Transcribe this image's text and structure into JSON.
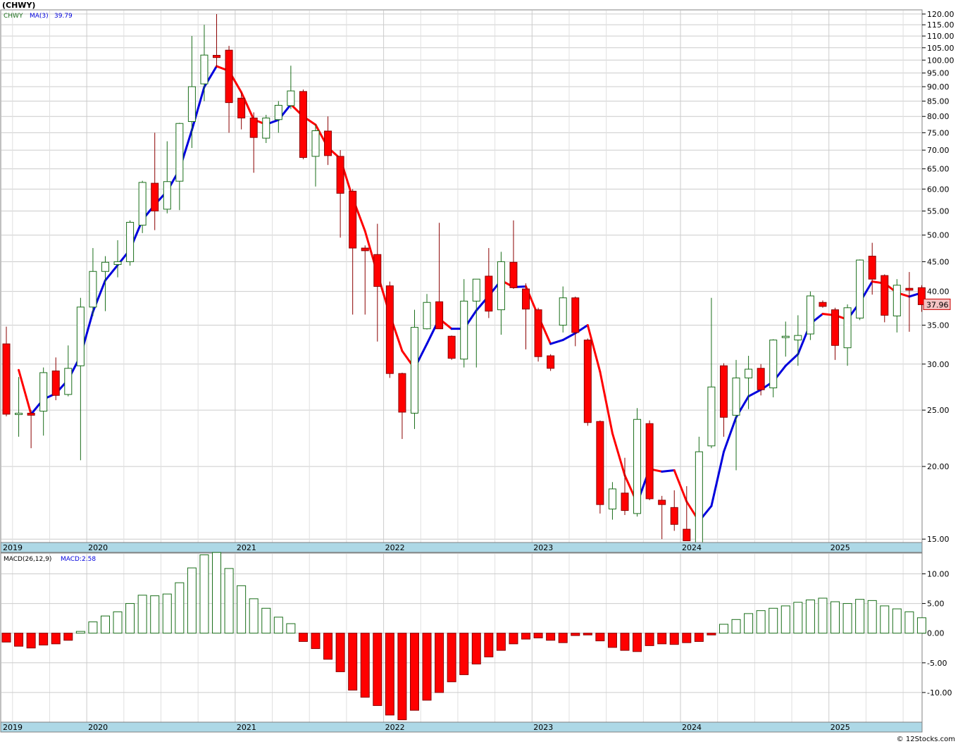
{
  "header": {
    "symbol_title": "(CHWY)",
    "legend_symbol": "CHWY",
    "legend_ma": "MA(3)",
    "legend_ma_value": "39.79",
    "last_price": "37.96",
    "macd_label": "MACD(26,12,9)",
    "macd_value": "MACD:2.58",
    "copyright": "© 12Stocks.com"
  },
  "colors": {
    "up": "#1a6e1a",
    "down": "#ff0000",
    "ma_up": "#0000dd",
    "ma_down": "#ff0000",
    "axis_band": "#add8e6",
    "grid": "#cccccc",
    "frame": "#808080",
    "last_price_box": "#f4c2c2"
  },
  "chart_data": [
    {
      "type": "candlestick",
      "title": "(CHWY)",
      "scale": "log",
      "ylim": [
        14.8,
        122
      ],
      "grid": true,
      "interval": "monthly",
      "ticks": [
        "120.00",
        "115.00",
        "110.00",
        "105.00",
        "100.00",
        "95.00",
        "90.00",
        "85.00",
        "80.00",
        "75.00",
        "70.00",
        "65.00",
        "60.00",
        "55.00",
        "50.00",
        "45.00",
        "40.00",
        "35.00",
        "30.00",
        "25.00",
        "20.00",
        "15.00"
      ],
      "year_labels": [
        "2019",
        "2020",
        "2021",
        "2022",
        "2023",
        "2024",
        "2025"
      ],
      "year_starts": [
        "2019-06",
        "2020-01",
        "2021-01",
        "2022-01",
        "2023-01",
        "2024-01",
        "2025-01"
      ],
      "first_month": "2019-06",
      "ohlc": [
        [
          32.5,
          34.8,
          24.4,
          24.6
        ],
        [
          24.6,
          28.5,
          22.5,
          24.7
        ],
        [
          24.7,
          25.0,
          21.5,
          24.5
        ],
        [
          24.9,
          29.6,
          22.6,
          29.0
        ],
        [
          29.2,
          30.8,
          26.0,
          26.5
        ],
        [
          26.6,
          32.3,
          26.4,
          29.5
        ],
        [
          29.8,
          39.0,
          20.5,
          37.6
        ],
        [
          37.6,
          47.5,
          36.3,
          43.3
        ],
        [
          43.3,
          46.0,
          37.0,
          44.9
        ],
        [
          44.5,
          49.0,
          42.3,
          45.0
        ],
        [
          45.0,
          53.0,
          44.3,
          52.6
        ],
        [
          52.0,
          62.0,
          50.4,
          61.6
        ],
        [
          61.4,
          75.0,
          51.0,
          55.0
        ],
        [
          55.4,
          72.5,
          54.5,
          61.8
        ],
        [
          61.9,
          78.0,
          55.2,
          77.8
        ],
        [
          78.4,
          110.0,
          70.6,
          90.0
        ],
        [
          91.0,
          115.0,
          85.0,
          102.0
        ],
        [
          101.9,
          120.0,
          97.0,
          101.0
        ],
        [
          104.0,
          105.8,
          75.0,
          84.5
        ],
        [
          86.0,
          88.0,
          76.0,
          79.5
        ],
        [
          79.5,
          81.3,
          64.0,
          73.6
        ],
        [
          73.4,
          80.5,
          72.0,
          79.5
        ],
        [
          79.0,
          85.0,
          75.0,
          83.6
        ],
        [
          83.5,
          97.8,
          82.4,
          88.5
        ],
        [
          88.3,
          89.0,
          67.5,
          68.0
        ],
        [
          68.3,
          77.5,
          60.6,
          75.6
        ],
        [
          75.5,
          80.0,
          66.0,
          68.5
        ],
        [
          68.3,
          70.0,
          49.5,
          59.0
        ],
        [
          59.5,
          60.0,
          36.5,
          47.5
        ],
        [
          47.5,
          48.0,
          36.5,
          47.0
        ],
        [
          46.3,
          52.3,
          32.8,
          40.8
        ],
        [
          40.9,
          41.6,
          28.4,
          28.9
        ],
        [
          28.9,
          29.0,
          22.3,
          24.8
        ],
        [
          24.7,
          37.2,
          23.2,
          34.7
        ],
        [
          34.5,
          39.6,
          34.4,
          38.3
        ],
        [
          38.4,
          52.5,
          34.5,
          34.5
        ],
        [
          33.5,
          33.6,
          30.5,
          30.7
        ],
        [
          30.6,
          42.0,
          29.6,
          38.5
        ],
        [
          38.5,
          42.0,
          29.6,
          42.0
        ],
        [
          42.5,
          47.5,
          36.0,
          37.0
        ],
        [
          37.2,
          46.8,
          33.7,
          45.0
        ],
        [
          44.9,
          53.0,
          40.4,
          40.6
        ],
        [
          40.4,
          41.3,
          31.8,
          37.3
        ],
        [
          37.2,
          37.5,
          30.3,
          30.9
        ],
        [
          31.0,
          31.2,
          29.2,
          29.5
        ],
        [
          35.0,
          40.8,
          34.0,
          39.0
        ],
        [
          39.0,
          39.2,
          32.2,
          34.0
        ],
        [
          33.0,
          33.2,
          23.5,
          23.8
        ],
        [
          23.9,
          24.0,
          16.6,
          17.2
        ],
        [
          16.9,
          18.8,
          16.2,
          18.3
        ],
        [
          18.0,
          20.7,
          16.5,
          16.8
        ],
        [
          16.6,
          25.2,
          16.4,
          24.1
        ],
        [
          23.7,
          24.0,
          17.5,
          17.6
        ],
        [
          17.5,
          17.8,
          15.0,
          17.2
        ],
        [
          17.0,
          18.2,
          15.5,
          15.9
        ],
        [
          15.6,
          18.5,
          15.0,
          14.9
        ],
        [
          14.7,
          22.5,
          14.7,
          21.2
        ],
        [
          21.7,
          39.0,
          21.5,
          27.4
        ],
        [
          29.8,
          30.1,
          22.5,
          24.3
        ],
        [
          24.5,
          30.5,
          19.7,
          28.4
        ],
        [
          28.4,
          31.0,
          25.1,
          29.4
        ],
        [
          29.5,
          30.0,
          26.5,
          27.1
        ],
        [
          27.3,
          33.1,
          26.3,
          33.0
        ],
        [
          33.4,
          35.5,
          30.9,
          33.5
        ],
        [
          33.0,
          36.4,
          29.8,
          33.6
        ],
        [
          33.8,
          40.0,
          33.0,
          39.3
        ],
        [
          38.3,
          38.6,
          37.5,
          37.7
        ],
        [
          37.2,
          37.5,
          30.5,
          32.3
        ],
        [
          32.0,
          38.0,
          29.8,
          37.5
        ],
        [
          36.0,
          45.4,
          35.7,
          45.3
        ],
        [
          46.0,
          48.5,
          39.5,
          42.0
        ],
        [
          42.6,
          42.8,
          35.4,
          36.4
        ],
        [
          36.3,
          42.0,
          34.0,
          41.0
        ],
        [
          40.5,
          43.2,
          34.1,
          40.2
        ],
        [
          40.6,
          41.0,
          36.9,
          37.96
        ]
      ],
      "ma_legend": "MA(3)",
      "ma": [
        [
          1,
          29.3
        ],
        [
          2,
          24.6
        ],
        [
          3,
          26.1
        ],
        [
          4,
          26.7
        ],
        [
          5,
          28.2
        ],
        [
          6,
          31.0
        ],
        [
          7,
          36.9
        ],
        [
          8,
          41.8
        ],
        [
          9,
          44.4
        ],
        [
          10,
          47.2
        ],
        [
          11,
          53.1
        ],
        [
          12,
          56.4
        ],
        [
          13,
          59.5
        ],
        [
          14,
          64.8
        ],
        [
          15,
          75.8
        ],
        [
          16,
          89.9
        ],
        [
          17,
          97.6
        ],
        [
          18,
          95.8
        ],
        [
          19,
          88.0
        ],
        [
          20,
          79.0
        ],
        [
          21,
          77.5
        ],
        [
          22,
          78.9
        ],
        [
          23,
          83.9
        ],
        [
          24,
          80.0
        ],
        [
          25,
          77.4
        ],
        [
          26,
          70.7
        ],
        [
          27,
          67.7
        ],
        [
          28,
          57.9
        ],
        [
          29,
          50.8
        ],
        [
          30,
          42.9
        ],
        [
          31,
          36.5
        ],
        [
          32,
          31.6
        ],
        [
          33,
          29.5
        ],
        [
          34,
          32.5
        ],
        [
          35,
          35.9
        ],
        [
          36,
          34.5
        ],
        [
          37,
          34.5
        ],
        [
          38,
          37.1
        ],
        [
          39,
          39.3
        ],
        [
          40,
          41.8
        ],
        [
          41,
          40.7
        ],
        [
          42,
          40.8
        ],
        [
          43,
          36.3
        ],
        [
          44,
          32.5
        ],
        [
          45,
          33.0
        ],
        [
          46,
          33.9
        ],
        [
          47,
          35.0
        ],
        [
          48,
          29.1
        ],
        [
          49,
          22.8
        ],
        [
          50,
          19.3
        ],
        [
          51,
          17.3
        ],
        [
          52,
          19.8
        ],
        [
          53,
          19.6
        ],
        [
          54,
          19.7
        ],
        [
          55,
          17.4
        ],
        [
          56,
          16.1
        ],
        [
          57,
          17.1
        ],
        [
          58,
          21.2
        ],
        [
          59,
          24.3
        ],
        [
          60,
          26.4
        ],
        [
          61,
          27.1
        ],
        [
          62,
          28.0
        ],
        [
          63,
          29.8
        ],
        [
          64,
          31.2
        ],
        [
          65,
          35.2
        ],
        [
          66,
          36.6
        ],
        [
          67,
          36.4
        ],
        [
          68,
          35.8
        ],
        [
          69,
          38.3
        ],
        [
          70,
          41.6
        ],
        [
          71,
          41.3
        ],
        [
          72,
          39.8
        ],
        [
          73,
          39.2
        ],
        [
          74,
          39.79
        ]
      ]
    },
    {
      "type": "bar",
      "title": "MACD(26,12,9)",
      "ylim": [
        -15.0,
        13.5
      ],
      "grid": true,
      "ticks": [
        "10.00",
        "5.00",
        "0.00",
        "-5.00",
        "-10.00"
      ],
      "year_labels": [
        "2019",
        "2020",
        "2021",
        "2022",
        "2023",
        "2024",
        "2025"
      ],
      "values": [
        -1.5,
        -2.2,
        -2.5,
        -2.0,
        -1.8,
        -1.2,
        0.3,
        1.9,
        2.9,
        3.6,
        5.0,
        6.4,
        6.3,
        6.6,
        8.5,
        11.0,
        13.2,
        13.6,
        10.9,
        8.0,
        5.8,
        4.2,
        2.7,
        1.6,
        -1.4,
        -2.6,
        -4.4,
        -6.5,
        -9.6,
        -10.8,
        -12.2,
        -13.8,
        -14.6,
        -13.0,
        -11.3,
        -10.0,
        -8.2,
        -7.0,
        -5.2,
        -4.0,
        -2.9,
        -1.8,
        -1.0,
        -0.8,
        -1.2,
        -1.6,
        -0.4,
        -0.3,
        -1.3,
        -2.4,
        -2.9,
        -3.1,
        -2.1,
        -1.8,
        -1.9,
        -1.6,
        -1.4,
        -0.3,
        1.5,
        2.3,
        3.3,
        3.8,
        4.2,
        4.6,
        5.2,
        5.6,
        5.9,
        5.3,
        5.0,
        5.7,
        5.5,
        4.6,
        4.1,
        3.6,
        2.6
      ]
    }
  ]
}
